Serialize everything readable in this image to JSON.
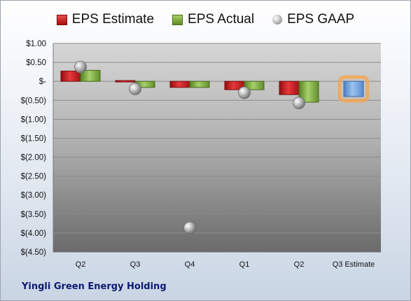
{
  "company_name": "Yingli Green Energy Holding",
  "legend": {
    "estimate": "EPS Estimate",
    "actual": "EPS Actual",
    "gaap": "EPS GAAP"
  },
  "colors": {
    "estimate": "#c0181b",
    "actual": "#7aab3a",
    "gaap": "#a6a6a6",
    "projection": "#6f9fdc",
    "projection_glow": "#f7a44d"
  },
  "chart_data": {
    "type": "bar",
    "categories": [
      "Q2",
      "Q3",
      "Q4",
      "Q1",
      "Q2",
      "Q3 Estimate"
    ],
    "series": [
      {
        "name": "EPS Estimate",
        "values": [
          0.27,
          0.02,
          -0.16,
          -0.22,
          -0.35,
          -0.4
        ]
      },
      {
        "name": "EPS Actual",
        "values": [
          0.29,
          -0.16,
          -0.16,
          -0.22,
          -0.55,
          null
        ]
      },
      {
        "name": "EPS GAAP",
        "values": [
          0.38,
          -0.2,
          -3.86,
          -0.3,
          -0.57,
          null
        ]
      }
    ],
    "ylim": [
      -4.5,
      1.0
    ],
    "yticks": [
      1.0,
      0.5,
      0,
      -0.5,
      -1.0,
      -1.5,
      -2.0,
      -2.5,
      -3.0,
      -3.5,
      -4.0,
      -4.5
    ],
    "ytick_labels": [
      "$1.00",
      "$0.50",
      "$-",
      "$(0.50)",
      "$(1.00)",
      "$(1.50)",
      "$(2.00)",
      "$(2.50)",
      "$(3.00)",
      "$(3.50)",
      "$(4.00)",
      "$(4.50)"
    ],
    "grid": true,
    "legend_position": "top"
  }
}
